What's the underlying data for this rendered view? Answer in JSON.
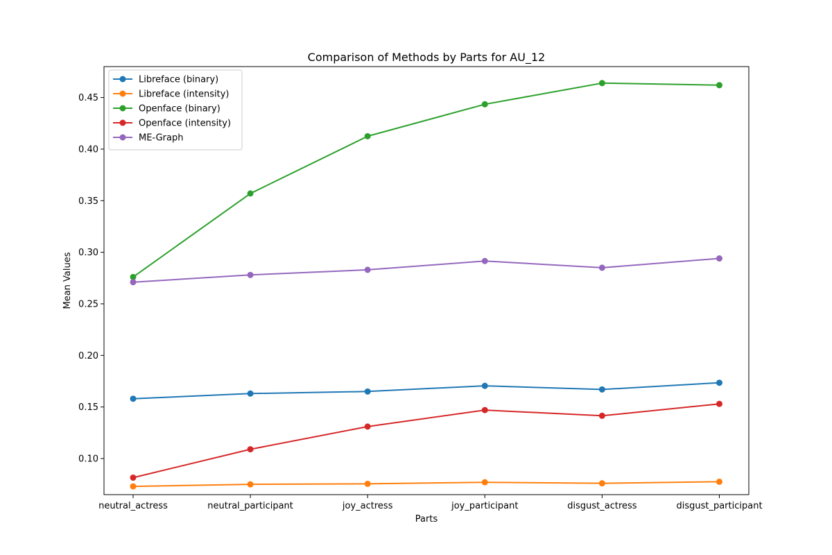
{
  "chart_data": {
    "type": "line",
    "title": "Comparison of Methods by Parts for AU_12",
    "xlabel": "Parts",
    "ylabel": "Mean Values",
    "categories": [
      "neutral_actress",
      "neutral_participant",
      "joy_actress",
      "joy_participant",
      "disgust_actress",
      "disgust_participant"
    ],
    "ylim": [
      0.065,
      0.48
    ],
    "yticks": [
      0.1,
      0.15,
      0.2,
      0.25,
      0.3,
      0.35,
      0.4,
      0.45
    ],
    "ytick_labels": [
      "0.10",
      "0.15",
      "0.20",
      "0.25",
      "0.30",
      "0.35",
      "0.40",
      "0.45"
    ],
    "grid": false,
    "legend_position": "top-left",
    "markers": "circle",
    "series": [
      {
        "name": "Libreface (binary)",
        "color": "#1f77b4",
        "values": [
          0.158,
          0.163,
          0.165,
          0.1705,
          0.167,
          0.1735
        ]
      },
      {
        "name": "Libreface (intensity)",
        "color": "#ff7f0e",
        "values": [
          0.073,
          0.075,
          0.0755,
          0.077,
          0.076,
          0.0775
        ]
      },
      {
        "name": "Openface (binary)",
        "color": "#2ca02c",
        "values": [
          0.276,
          0.357,
          0.4125,
          0.4435,
          0.464,
          0.462
        ]
      },
      {
        "name": "Openface (intensity)",
        "color": "#d62728",
        "values": [
          0.0815,
          0.109,
          0.131,
          0.147,
          0.1415,
          0.153
        ]
      },
      {
        "name": "ME-Graph",
        "color": "#9467bd",
        "values": [
          0.271,
          0.278,
          0.283,
          0.2915,
          0.285,
          0.294
        ]
      }
    ]
  }
}
